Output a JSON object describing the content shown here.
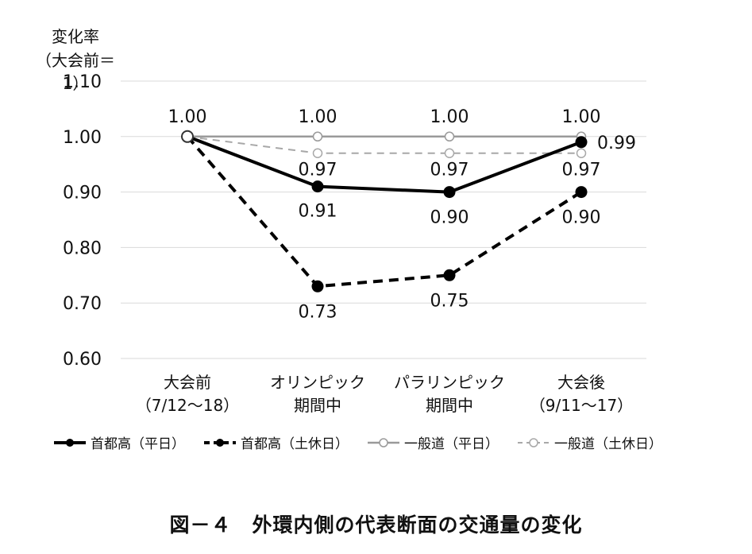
{
  "chart_data": {
    "type": "line",
    "ylabel": [
      "変化率",
      "（大会前＝1）"
    ],
    "ylim": [
      0.6,
      1.1
    ],
    "yticks": [
      "1.10",
      "1.00",
      "0.90",
      "0.80",
      "0.70",
      "0.60"
    ],
    "grid": true,
    "categories": [
      [
        "大会前",
        "（7/12～18）"
      ],
      [
        "オリンピック",
        "期間中"
      ],
      [
        "パラリンピック",
        "期間中"
      ],
      [
        "大会後",
        "（9/11～17）"
      ]
    ],
    "series": [
      {
        "name": "首都高（平日）",
        "values": [
          1.0,
          0.91,
          0.9,
          0.99
        ],
        "labels": [
          "1.00",
          "0.91",
          "0.90",
          "0.99"
        ],
        "color": "#000000",
        "dash": false,
        "marker": "filled"
      },
      {
        "name": "首都高（土休日）",
        "values": [
          1.0,
          0.73,
          0.75,
          0.9
        ],
        "labels": [
          "",
          "0.73",
          "0.75",
          "0.90"
        ],
        "color": "#000000",
        "dash": true,
        "marker": "filled"
      },
      {
        "name": "一般道（平日）",
        "values": [
          1.0,
          1.0,
          1.0,
          1.0
        ],
        "labels": [
          "",
          "1.00",
          "1.00",
          "1.00"
        ],
        "color": "#9a9a9a",
        "dash": false,
        "marker": "open"
      },
      {
        "name": "一般道（土休日）",
        "values": [
          1.0,
          0.97,
          0.97,
          0.97
        ],
        "labels": [
          "",
          "0.97",
          "0.97",
          "0.97"
        ],
        "color": "#a8a8a8",
        "dash": true,
        "marker": "open"
      }
    ]
  },
  "caption": "図－４　外環内側の代表断面の交通量の変化"
}
